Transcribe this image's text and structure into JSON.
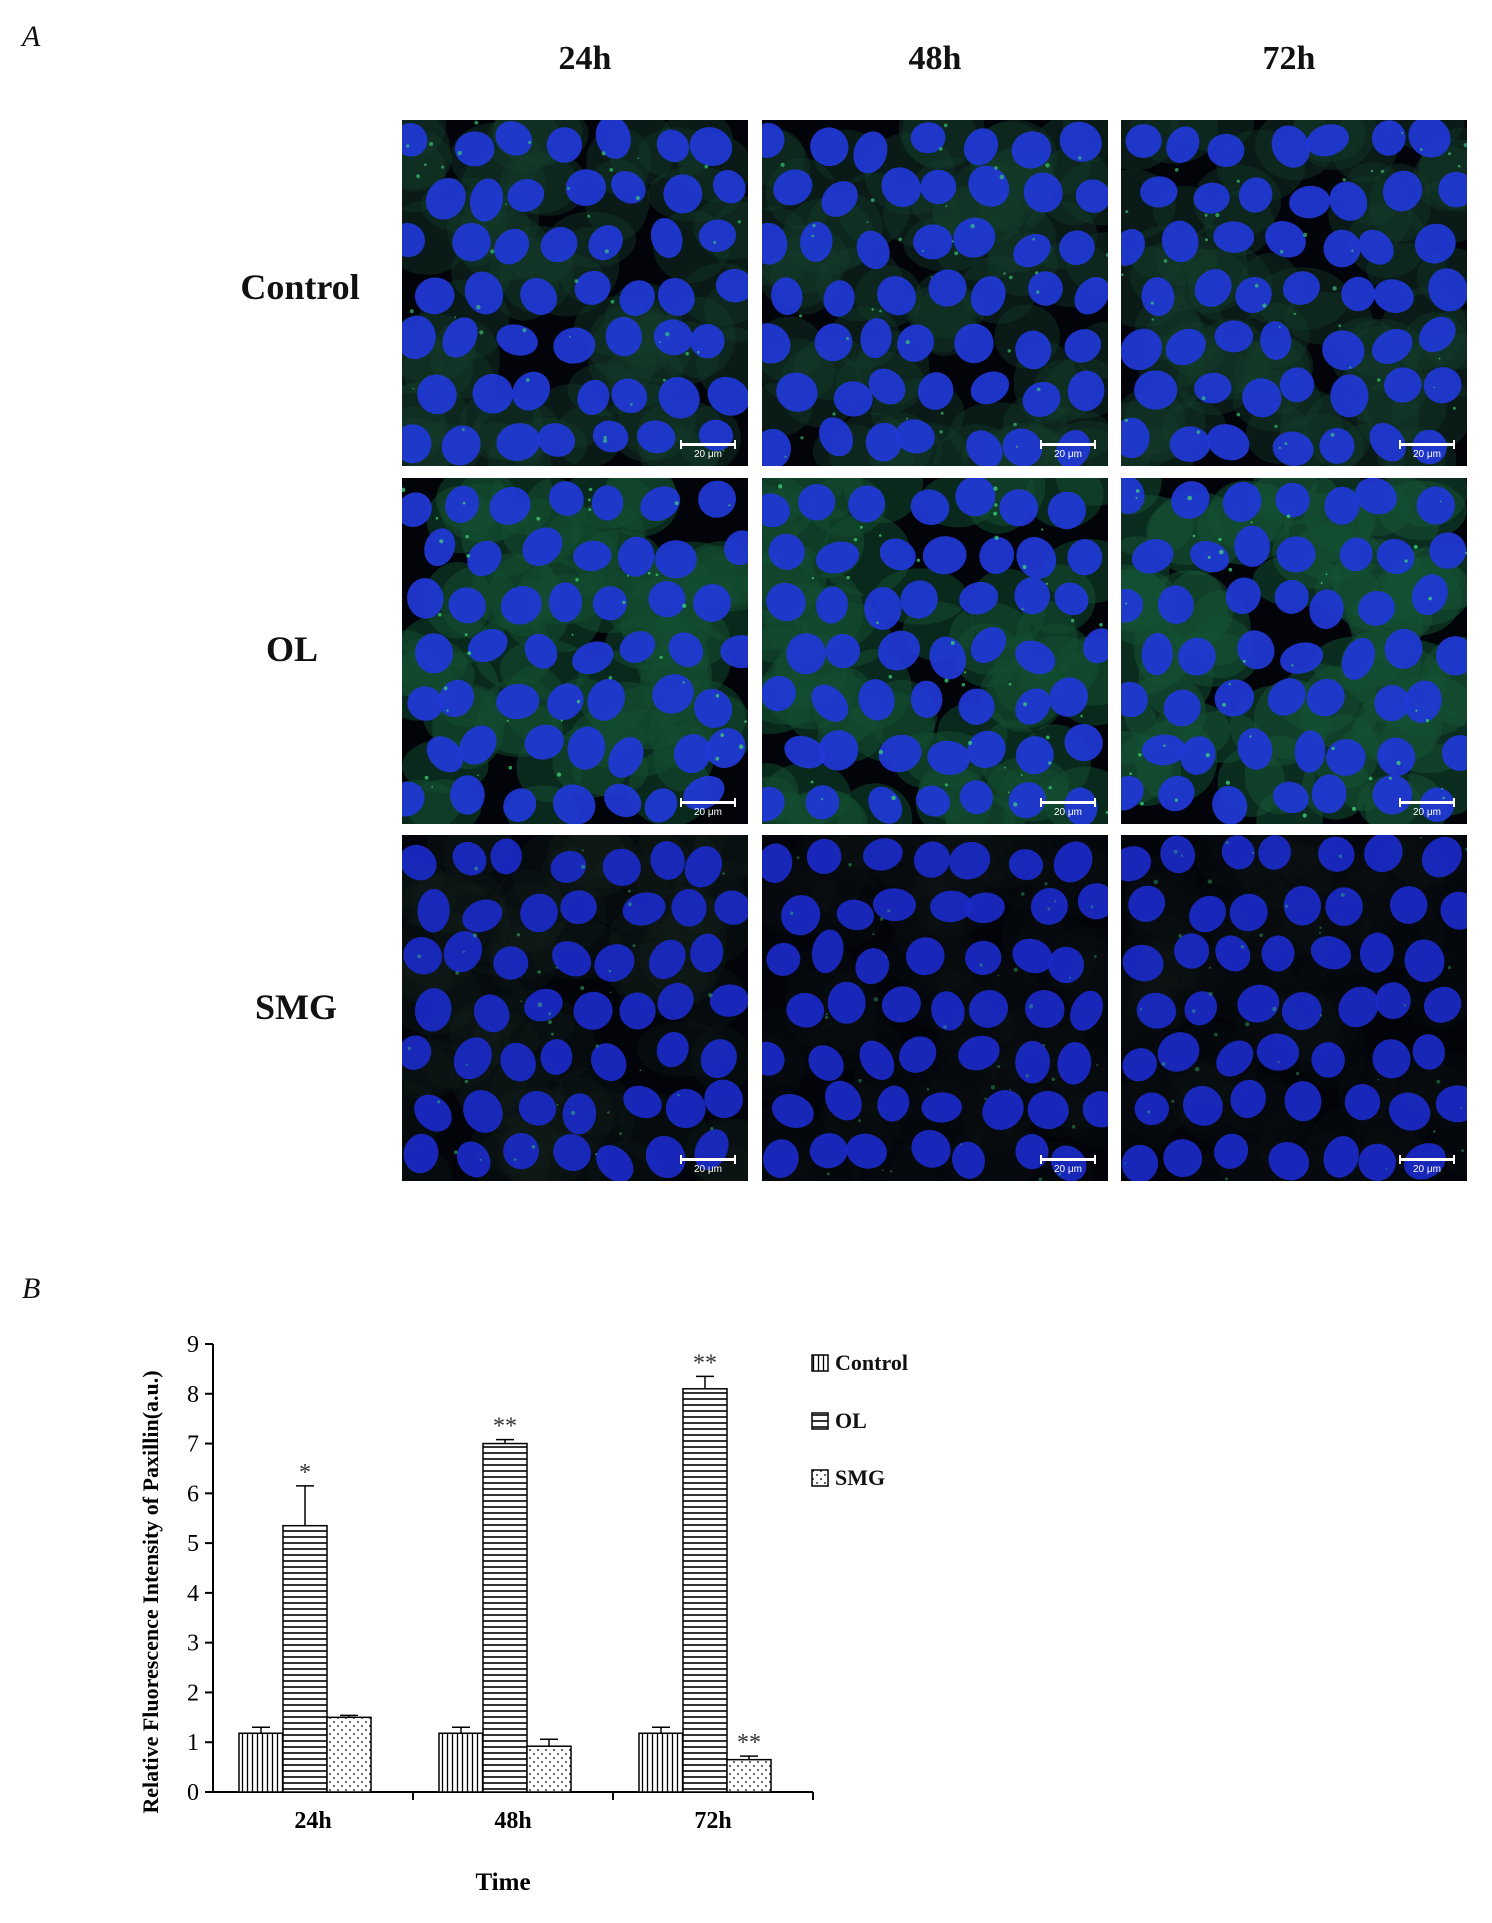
{
  "panel_a": {
    "letter": "A",
    "columns": [
      "24h",
      "48h",
      "72h"
    ],
    "rows": [
      "Control",
      "OL",
      "SMG"
    ],
    "scale_bar_label": "20 μm"
  },
  "panel_b": {
    "letter": "B",
    "legend": [
      {
        "label": "Control",
        "pattern": "vertical-lines"
      },
      {
        "label": "OL",
        "pattern": "horizontal-lines"
      },
      {
        "label": "SMG",
        "pattern": "dots"
      }
    ]
  },
  "chart_data": {
    "type": "bar",
    "categories": [
      "24h",
      "48h",
      "72h"
    ],
    "series": [
      {
        "name": "Control",
        "values": [
          1.18,
          1.18,
          1.18
        ],
        "errors": [
          0.12,
          0.12,
          0.12
        ],
        "marks": [
          "",
          "",
          ""
        ]
      },
      {
        "name": "OL",
        "values": [
          5.35,
          7.0,
          8.1
        ],
        "errors": [
          0.8,
          0.08,
          0.25
        ],
        "marks": [
          "*",
          "**",
          "**"
        ]
      },
      {
        "name": "SMG",
        "values": [
          1.5,
          0.92,
          0.65
        ],
        "errors": [
          0.04,
          0.14,
          0.07
        ],
        "marks": [
          "",
          "",
          "**"
        ]
      }
    ],
    "xlabel": "Time",
    "ylabel": "Relative Fluorescence Intensity of Paxillin(a.u.)",
    "ylim": [
      0,
      9
    ],
    "yticks": [
      "0",
      "1",
      "2",
      "3",
      "4",
      "5",
      "6",
      "7",
      "8",
      "9"
    ],
    "grid": false,
    "legend_position": "right"
  }
}
